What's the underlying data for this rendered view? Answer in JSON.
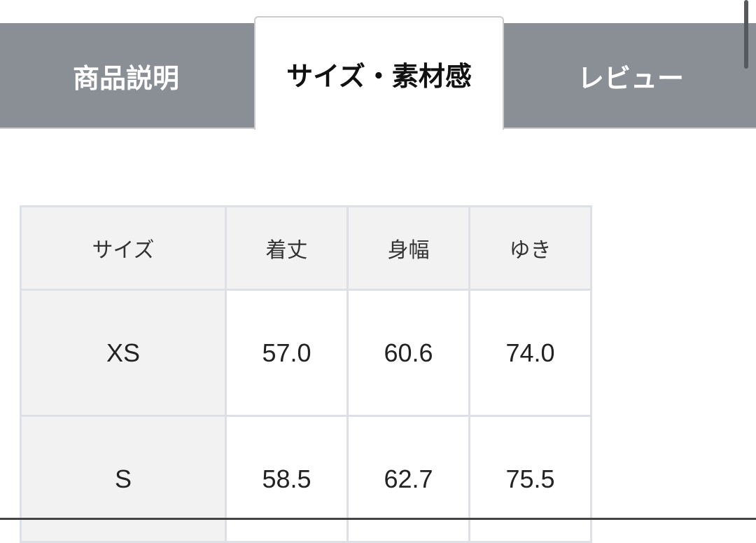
{
  "tabs": [
    {
      "label": "商品説明",
      "active": false
    },
    {
      "label": "サイズ・素材感",
      "active": true
    },
    {
      "label": "レビュー",
      "active": false
    }
  ],
  "size_table": {
    "headers": [
      "サイズ",
      "着丈",
      "身幅",
      "ゆき"
    ],
    "rows": [
      [
        "XS",
        "57.0",
        "60.6",
        "74.0"
      ],
      [
        "S",
        "58.5",
        "62.7",
        "75.5"
      ]
    ]
  },
  "colors": {
    "tab_inactive": "#8a8e95",
    "tab_active": "#ffffff",
    "header_bg": "#f2f2f2",
    "border": "#dde0e6"
  }
}
